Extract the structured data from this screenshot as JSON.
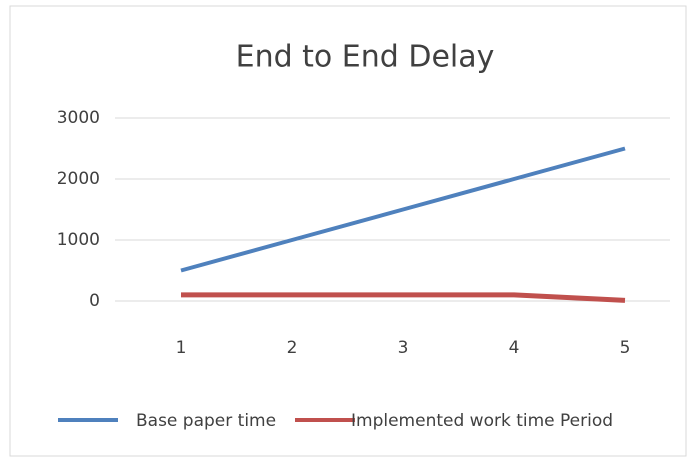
{
  "chart_data": {
    "type": "line",
    "title": "End to End Delay",
    "categories": [
      "1",
      "2",
      "3",
      "4",
      "5"
    ],
    "series": [
      {
        "name": "Base paper time",
        "color": "#4f81bd",
        "values": [
          500,
          1000,
          1500,
          2000,
          2500
        ]
      },
      {
        "name": "Implemented  work time Period",
        "color": "#c0504d",
        "values": [
          100,
          100,
          100,
          100,
          10
        ]
      }
    ],
    "ylim": [
      0,
      3000
    ],
    "yticks": [
      0,
      1000,
      2000,
      3000
    ],
    "grid": true,
    "legend": "bottom"
  }
}
